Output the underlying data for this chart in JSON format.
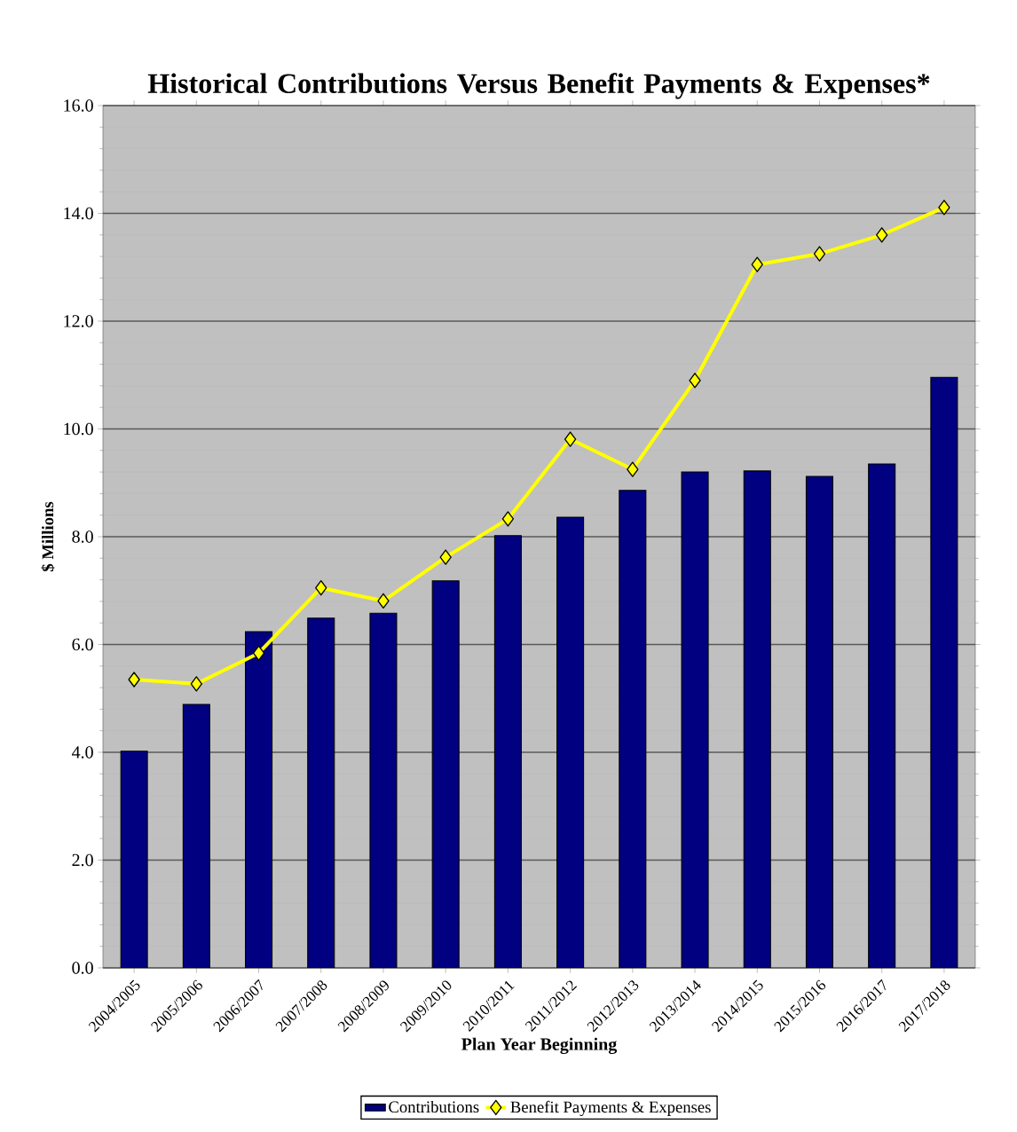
{
  "chart_data": {
    "type": "bar",
    "title": "Historical Contributions Versus Benefit Payments & Expenses*",
    "xlabel": "Plan Year Beginning",
    "ylabel": "$ Millions",
    "categories": [
      "2004/2005",
      "2005/2006",
      "2006/2007",
      "2007/2008",
      "2008/2009",
      "2009/2010",
      "2010/2011",
      "2011/2012",
      "2012/2013",
      "2013/2014",
      "2014/2015",
      "2015/2016",
      "2016/2017",
      "2017/2018"
    ],
    "series": [
      {
        "name": "Contributions",
        "color": "#000080",
        "values": [
          4.02,
          4.89,
          6.24,
          6.49,
          6.58,
          7.18,
          8.02,
          8.36,
          8.86,
          9.2,
          9.22,
          9.12,
          9.35,
          10.96
        ]
      },
      {
        "name": "Benefit Payments & Expenses",
        "type": "line",
        "color": "#ffff00",
        "marker": "diamond",
        "line_style": "solid",
        "values": [
          5.35,
          5.27,
          5.84,
          7.05,
          6.81,
          7.62,
          8.33,
          9.81,
          9.25,
          10.9,
          13.05,
          13.25,
          13.6,
          14.11
        ]
      }
    ],
    "ylim": [
      0,
      16
    ],
    "yticks": [
      {
        "value": 0,
        "label": "0.0"
      },
      {
        "value": 2,
        "label": "2.0"
      },
      {
        "value": 4,
        "label": "4.0"
      },
      {
        "value": 6,
        "label": "6.0"
      },
      {
        "value": 8,
        "label": "8.0"
      },
      {
        "value": 10,
        "label": "10.0"
      },
      {
        "value": 12,
        "label": "12.0"
      },
      {
        "value": 14,
        "label": "14.0"
      },
      {
        "value": 16,
        "label": "16.0"
      }
    ],
    "grid": "y",
    "legend": "bottom"
  }
}
